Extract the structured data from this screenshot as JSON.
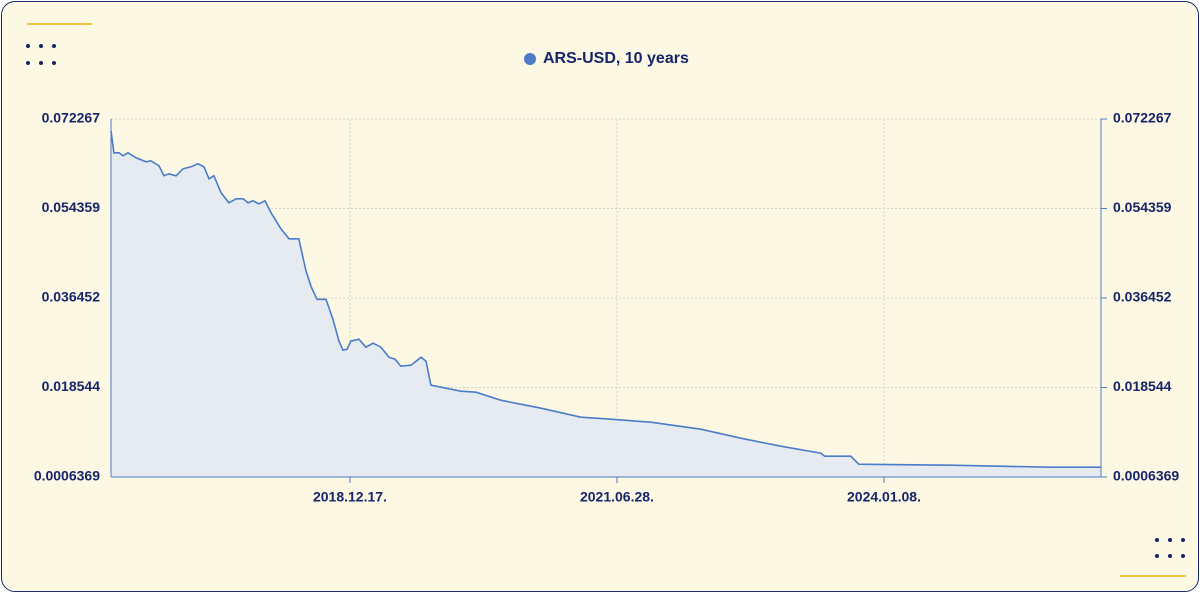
{
  "chart_data": {
    "type": "area",
    "title": "ARS-USD, 10 years",
    "series": [
      {
        "name": "ARS-USD, 10 years",
        "color": "#4a7cc7",
        "fill": "#e6ebf1",
        "x": [
          "2016-09-11",
          "2016-09-21",
          "2016-10-09",
          "2016-10-23",
          "2016-11-09",
          "2016-12-07",
          "2017-01-10",
          "2017-01-27",
          "2017-02-24",
          "2017-03-13",
          "2017-03-31",
          "2017-04-24",
          "2017-05-18",
          "2017-06-15",
          "2017-07-09",
          "2017-07-30",
          "2017-08-16",
          "2017-09-02",
          "2017-09-27",
          "2017-10-24",
          "2017-11-18",
          "2017-12-12",
          "2017-12-29",
          "2018-01-15",
          "2018-02-05",
          "2018-02-26",
          "2018-03-19",
          "2018-04-22",
          "2018-05-20",
          "2018-06-23",
          "2018-07-18",
          "2018-08-04",
          "2018-08-25",
          "2018-09-25",
          "2018-10-19",
          "2018-11-09",
          "2018-11-23",
          "2018-12-07",
          "2018-12-20",
          "2019-01-17",
          "2019-02-10",
          "2019-03-07",
          "2019-04-03",
          "2019-05-01",
          "2019-05-22",
          "2019-06-11",
          "2019-07-16",
          "2019-08-20",
          "2019-09-06",
          "2019-09-23",
          "2019-10-28",
          "2020-01-05",
          "2020-02-26",
          "2020-05-22",
          "2020-10-08",
          "2021-02-23",
          "2021-06-07",
          "2021-10-23",
          "2022-04-14",
          "2022-08-31",
          "2023-01-16",
          "2023-06-04",
          "2023-06-17",
          "2023-09-15",
          "2023-10-13",
          "2024-08-26",
          "2025-08-07",
          "2026-01-27"
        ],
        "values": [
          0.0699,
          0.0655,
          0.0655,
          0.0649,
          0.0655,
          0.0645,
          0.0637,
          0.0639,
          0.0629,
          0.0609,
          0.0613,
          0.0609,
          0.0623,
          0.0627,
          0.0633,
          0.0627,
          0.0603,
          0.0609,
          0.0575,
          0.0555,
          0.0563,
          0.0563,
          0.0555,
          0.0559,
          0.0553,
          0.0559,
          0.0535,
          0.0503,
          0.0483,
          0.0483,
          0.0418,
          0.0388,
          0.0362,
          0.0362,
          0.0322,
          0.0278,
          0.026,
          0.0262,
          0.0278,
          0.0282,
          0.0266,
          0.0274,
          0.0266,
          0.0246,
          0.0242,
          0.0228,
          0.023,
          0.0246,
          0.0238,
          0.019,
          0.0186,
          0.0178,
          0.0176,
          0.016,
          0.0144,
          0.0126,
          0.0122,
          0.0116,
          0.0102,
          0.0084,
          0.0068,
          0.0054,
          0.0048,
          0.0048,
          0.0032,
          0.003,
          0.0026,
          0.0026
        ]
      }
    ],
    "xlim": [
      "2016-09-11",
      "2026-01-28"
    ],
    "xticks": [
      {
        "value": "2018-12-17",
        "label": "2018.12.17."
      },
      {
        "value": "2021-06-28",
        "label": "2021.06.28."
      },
      {
        "value": "2024-01-08",
        "label": "2024.01.08."
      }
    ],
    "ylim": [
      0.0006369,
      0.072267
    ],
    "yticks": [
      0.0006369,
      0.018544,
      0.036452,
      0.054359,
      0.072267
    ],
    "y2lim": [
      0.0006369,
      0.072267
    ],
    "y2ticks": [
      0.0006369,
      0.018544,
      0.036452,
      0.054359,
      0.072267
    ],
    "grid": true
  }
}
